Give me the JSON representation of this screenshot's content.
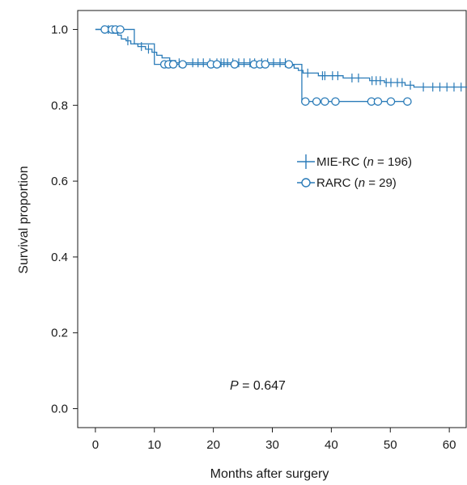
{
  "chart_data": {
    "type": "line",
    "title": "",
    "xlabel": "Months after surgery",
    "ylabel": "Survival proportion",
    "xlim": [
      -3,
      63
    ],
    "ylim": [
      -0.05,
      1.05
    ],
    "xticks": [
      0,
      10,
      20,
      30,
      40,
      50,
      60
    ],
    "yticks": [
      "0.0",
      "0.2",
      "0.4",
      "0.6",
      "0.8",
      "1.0"
    ],
    "grid": false,
    "legend_position": "center-right",
    "annotation": {
      "label": "P",
      "value": " = 0.647",
      "x": 23,
      "y": 0.07
    },
    "series": [
      {
        "name": "MIE-RC",
        "n_label": "n",
        "n_value": " = 196)",
        "color": "#2a7bb8",
        "marker": "plus",
        "steps": [
          [
            0,
            1.0
          ],
          [
            3,
            0.99
          ],
          [
            3.8,
            0.985
          ],
          [
            4.4,
            0.975
          ],
          [
            5.2,
            0.97
          ],
          [
            6.0,
            0.962
          ],
          [
            7.2,
            0.955
          ],
          [
            8.5,
            0.948
          ],
          [
            9.6,
            0.94
          ],
          [
            10.4,
            0.932
          ],
          [
            11.3,
            0.925
          ],
          [
            12.6,
            0.918
          ],
          [
            13.6,
            0.912
          ],
          [
            33.0,
            0.905
          ],
          [
            33.7,
            0.898
          ],
          [
            34.4,
            0.892
          ],
          [
            35.2,
            0.885
          ],
          [
            37.8,
            0.878
          ],
          [
            42.0,
            0.872
          ],
          [
            46.5,
            0.865
          ],
          [
            49.0,
            0.86
          ],
          [
            52.5,
            0.853
          ],
          [
            54.0,
            0.848
          ]
        ],
        "end_x": 63,
        "censored": [
          2.2,
          5.5,
          7.8,
          9.0,
          14.2,
          16.5,
          17.4,
          18.3,
          19.4,
          20.6,
          21.3,
          21.8,
          22.4,
          23.3,
          24.3,
          25.2,
          26.2,
          27.0,
          28.2,
          29.2,
          30.2,
          31.3,
          32.2,
          36.0,
          38.5,
          38.9,
          40.2,
          41.1,
          43.5,
          44.6,
          46.9,
          47.6,
          48.3,
          49.3,
          50.1,
          51.2,
          52.0,
          53.4,
          55.6,
          57.2,
          58.4,
          59.6,
          60.8,
          62.0
        ]
      },
      {
        "name": "RARC",
        "n_label": "n",
        "n_value": " = 29)",
        "color": "#2a7bb8",
        "marker": "circle",
        "steps": [
          [
            0,
            1.0
          ],
          [
            6.6,
            0.962
          ],
          [
            10.0,
            0.908
          ],
          [
            35.0,
            0.81
          ]
        ],
        "end_x": 53.5,
        "censored": [
          1.6,
          2.8,
          3.4,
          4.2,
          11.7,
          12.4,
          13.2,
          14.8,
          19.6,
          20.6,
          23.6,
          26.9,
          27.9,
          28.8,
          32.8,
          35.6,
          37.5,
          38.9,
          40.7,
          46.8,
          47.9,
          50.1,
          52.9
        ]
      }
    ]
  }
}
